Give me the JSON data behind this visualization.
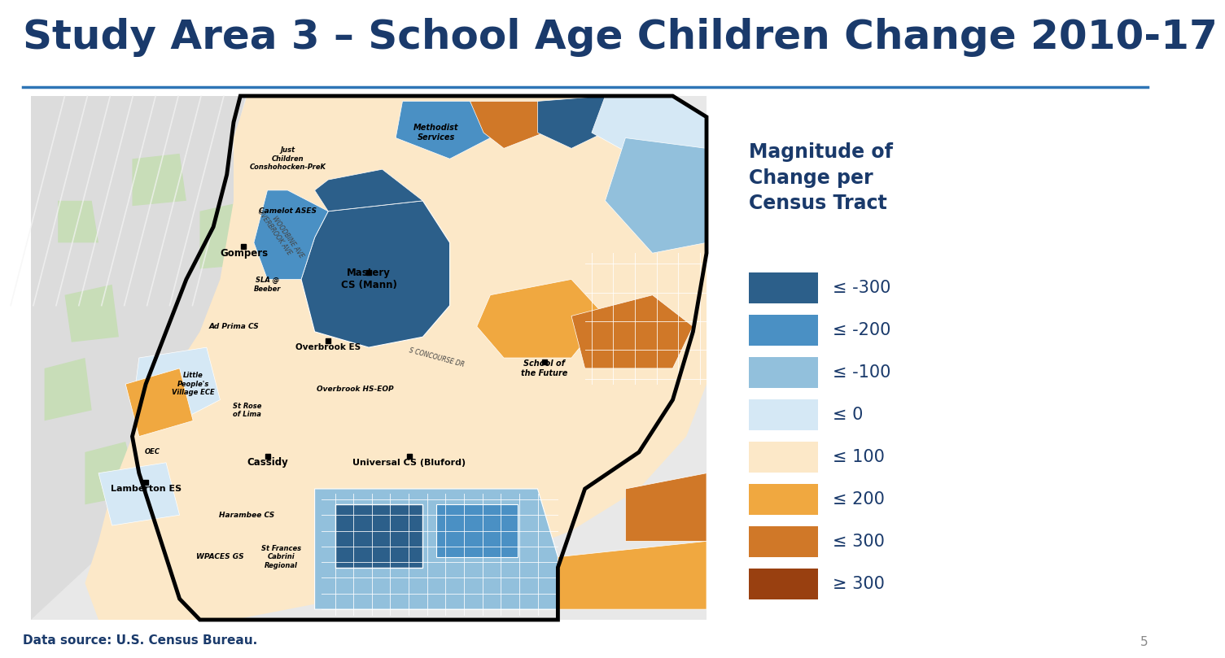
{
  "title": "Study Area 3 – School Age Children Change 2010-17",
  "title_color": "#1a3a6b",
  "title_fontsize": 36,
  "separator_color": "#2e75b6",
  "background_color": "#ffffff",
  "footer_text": "Data source: U.S. Census Bureau.",
  "footer_color": "#1a3a6b",
  "footer_fontsize": 11,
  "legend_title": "Magnitude of\nChange per\nCensus Tract",
  "legend_title_color": "#1a3a6b",
  "legend_title_fontsize": 17,
  "legend_items": [
    {
      "label": "≤ -300",
      "color": "#2c5f8a"
    },
    {
      "label": "≤ -200",
      "color": "#4a90c4"
    },
    {
      "label": "≤ -100",
      "color": "#92c0dc"
    },
    {
      "label": "≤ 0",
      "color": "#d5e8f5"
    },
    {
      "label": "≤ 100",
      "color": "#fce8c8"
    },
    {
      "label": "≤ 200",
      "color": "#f0a840"
    },
    {
      "label": "≤ 300",
      "color": "#d07828"
    },
    {
      "label": "≥ 300",
      "color": "#994010"
    }
  ],
  "legend_fontsize": 15,
  "page_number": "5"
}
